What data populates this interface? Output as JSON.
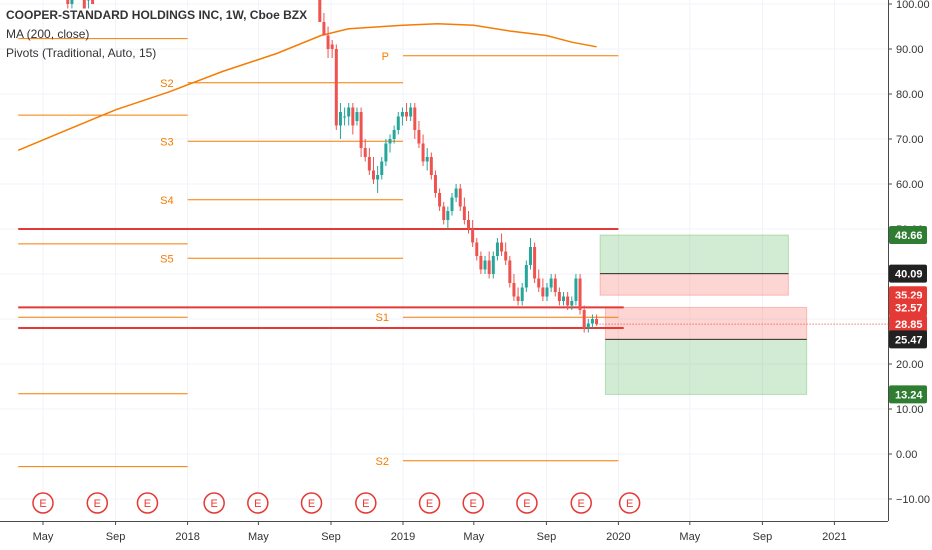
{
  "chart_data": {
    "type": "candlestick",
    "title": "COOPER-STANDARD HOLDINGS INC, 1W, Cboe BZX",
    "indicators": [
      "MA (200, close)",
      "Pivots (Traditional, Auto, 15)"
    ],
    "y_axis": {
      "position": "right",
      "ylim": [
        -13,
        102
      ],
      "ticks": [
        100,
        90,
        80,
        70,
        60,
        50,
        40,
        30,
        20,
        10,
        0,
        -10
      ],
      "tick_labels": [
        "100.00",
        "90.00",
        "80.00",
        "70.00",
        "60.00",
        "50.00",
        "40.00",
        "30.00",
        "20.00",
        "10.00",
        "0.00",
        "−10.00"
      ]
    },
    "x_axis": {
      "range": [
        "2017-03-20",
        "2021-04-15"
      ],
      "ticks": [
        {
          "date": "2017-05-01",
          "label": "May"
        },
        {
          "date": "2017-09-01",
          "label": "Sep"
        },
        {
          "date": "2018-01-01",
          "label": "2018"
        },
        {
          "date": "2018-05-01",
          "label": "May"
        },
        {
          "date": "2018-09-01",
          "label": "Sep"
        },
        {
          "date": "2019-01-01",
          "label": "2019"
        },
        {
          "date": "2019-05-01",
          "label": "May"
        },
        {
          "date": "2019-09-01",
          "label": "Sep"
        },
        {
          "date": "2020-01-01",
          "label": "2020"
        },
        {
          "date": "2020-05-01",
          "label": "May"
        },
        {
          "date": "2020-09-01",
          "label": "Sep"
        },
        {
          "date": "2021-01-01",
          "label": "2021"
        }
      ]
    },
    "candles": [
      {
        "date": "2017-06-05",
        "open": 104,
        "high": 104,
        "low": 101,
        "close": 102
      },
      {
        "date": "2017-06-12",
        "open": 102,
        "high": 103,
        "low": 99,
        "close": 100
      },
      {
        "date": "2017-06-19",
        "open": 100,
        "high": 103,
        "low": 99,
        "close": 102
      },
      {
        "date": "2017-07-10",
        "open": 102,
        "high": 103,
        "low": 99,
        "close": 99
      },
      {
        "date": "2017-07-17",
        "open": 101,
        "high": 103,
        "low": 99,
        "close": 101
      },
      {
        "date": "2017-07-24",
        "open": 102,
        "high": 103,
        "low": 100,
        "close": 100
      },
      {
        "date": "2018-08-13",
        "open": 103,
        "high": 104,
        "low": 96,
        "close": 96
      },
      {
        "date": "2018-08-20",
        "open": 96,
        "high": 98,
        "low": 93,
        "close": 93
      },
      {
        "date": "2018-08-27",
        "open": 93,
        "high": 95,
        "low": 88,
        "close": 90
      },
      {
        "date": "2018-09-03",
        "open": 91,
        "high": 92,
        "low": 88,
        "close": 90
      },
      {
        "date": "2018-09-10",
        "open": 90,
        "high": 91,
        "low": 72,
        "close": 73
      },
      {
        "date": "2018-09-17",
        "open": 73,
        "high": 78,
        "low": 70,
        "close": 76
      },
      {
        "date": "2018-09-24",
        "open": 75,
        "high": 77,
        "low": 73,
        "close": 75
      },
      {
        "date": "2018-10-01",
        "open": 75,
        "high": 78,
        "low": 73,
        "close": 77
      },
      {
        "date": "2018-10-08",
        "open": 77,
        "high": 78,
        "low": 71,
        "close": 73
      },
      {
        "date": "2018-10-15",
        "open": 74,
        "high": 77,
        "low": 73,
        "close": 76
      },
      {
        "date": "2018-10-22",
        "open": 76,
        "high": 77,
        "low": 66,
        "close": 68
      },
      {
        "date": "2018-10-29",
        "open": 68,
        "high": 70,
        "low": 65,
        "close": 66
      },
      {
        "date": "2018-11-05",
        "open": 66,
        "high": 68,
        "low": 62,
        "close": 63
      },
      {
        "date": "2018-11-12",
        "open": 63,
        "high": 66,
        "low": 60,
        "close": 61
      },
      {
        "date": "2018-11-19",
        "open": 61,
        "high": 64,
        "low": 58,
        "close": 62
      },
      {
        "date": "2018-11-26",
        "open": 62,
        "high": 66,
        "low": 61,
        "close": 65
      },
      {
        "date": "2018-12-03",
        "open": 65,
        "high": 70,
        "low": 64,
        "close": 69
      },
      {
        "date": "2018-12-10",
        "open": 69,
        "high": 71,
        "low": 67,
        "close": 70
      },
      {
        "date": "2018-12-17",
        "open": 70,
        "high": 73,
        "low": 69,
        "close": 72
      },
      {
        "date": "2018-12-24",
        "open": 72,
        "high": 76,
        "low": 71,
        "close": 75
      },
      {
        "date": "2018-12-31",
        "open": 75,
        "high": 77,
        "low": 73,
        "close": 76
      },
      {
        "date": "2019-01-07",
        "open": 76,
        "high": 78,
        "low": 74,
        "close": 75
      },
      {
        "date": "2019-01-14",
        "open": 75,
        "high": 78,
        "low": 74,
        "close": 77
      },
      {
        "date": "2019-01-21",
        "open": 77,
        "high": 78,
        "low": 70,
        "close": 72
      },
      {
        "date": "2019-01-28",
        "open": 72,
        "high": 74,
        "low": 68,
        "close": 69
      },
      {
        "date": "2019-02-04",
        "open": 69,
        "high": 71,
        "low": 64,
        "close": 65
      },
      {
        "date": "2019-02-11",
        "open": 65,
        "high": 68,
        "low": 63,
        "close": 66
      },
      {
        "date": "2019-02-18",
        "open": 66,
        "high": 67,
        "low": 61,
        "close": 62
      },
      {
        "date": "2019-02-25",
        "open": 62,
        "high": 63,
        "low": 57,
        "close": 58
      },
      {
        "date": "2019-03-04",
        "open": 58,
        "high": 59,
        "low": 54,
        "close": 55
      },
      {
        "date": "2019-03-11",
        "open": 55,
        "high": 56,
        "low": 51,
        "close": 52
      },
      {
        "date": "2019-03-18",
        "open": 52,
        "high": 55,
        "low": 50,
        "close": 54
      },
      {
        "date": "2019-03-25",
        "open": 54,
        "high": 58,
        "low": 53,
        "close": 57
      },
      {
        "date": "2019-04-01",
        "open": 57,
        "high": 60,
        "low": 56,
        "close": 59
      },
      {
        "date": "2019-04-08",
        "open": 59,
        "high": 60,
        "low": 54,
        "close": 55
      },
      {
        "date": "2019-04-15",
        "open": 55,
        "high": 57,
        "low": 51,
        "close": 52
      },
      {
        "date": "2019-04-22",
        "open": 52,
        "high": 54,
        "low": 49,
        "close": 50
      },
      {
        "date": "2019-04-29",
        "open": 50,
        "high": 52,
        "low": 46,
        "close": 47
      },
      {
        "date": "2019-05-06",
        "open": 47,
        "high": 48,
        "low": 43,
        "close": 44
      },
      {
        "date": "2019-05-13",
        "open": 44,
        "high": 45,
        "low": 40,
        "close": 41
      },
      {
        "date": "2019-05-20",
        "open": 41,
        "high": 44,
        "low": 40,
        "close": 43
      },
      {
        "date": "2019-05-27",
        "open": 43,
        "high": 45,
        "low": 39,
        "close": 40
      },
      {
        "date": "2019-06-03",
        "open": 40,
        "high": 45,
        "low": 39,
        "close": 44
      },
      {
        "date": "2019-06-10",
        "open": 44,
        "high": 48,
        "low": 43,
        "close": 47
      },
      {
        "date": "2019-06-17",
        "open": 47,
        "high": 49,
        "low": 44,
        "close": 45
      },
      {
        "date": "2019-06-24",
        "open": 45,
        "high": 47,
        "low": 42,
        "close": 43
      },
      {
        "date": "2019-07-01",
        "open": 43,
        "high": 44,
        "low": 37,
        "close": 38
      },
      {
        "date": "2019-07-08",
        "open": 38,
        "high": 40,
        "low": 34,
        "close": 35
      },
      {
        "date": "2019-07-15",
        "open": 35,
        "high": 37,
        "low": 33,
        "close": 34
      },
      {
        "date": "2019-07-22",
        "open": 34,
        "high": 38,
        "low": 33,
        "close": 37
      },
      {
        "date": "2019-07-29",
        "open": 37,
        "high": 43,
        "low": 36,
        "close": 42
      },
      {
        "date": "2019-08-05",
        "open": 42,
        "high": 48,
        "low": 41,
        "close": 46
      },
      {
        "date": "2019-08-12",
        "open": 46,
        "high": 47,
        "low": 38,
        "close": 39
      },
      {
        "date": "2019-08-19",
        "open": 39,
        "high": 41,
        "low": 36,
        "close": 37
      },
      {
        "date": "2019-08-26",
        "open": 37,
        "high": 39,
        "low": 34,
        "close": 35
      },
      {
        "date": "2019-09-02",
        "open": 35,
        "high": 38,
        "low": 34,
        "close": 37
      },
      {
        "date": "2019-09-09",
        "open": 37,
        "high": 40,
        "low": 36,
        "close": 39
      },
      {
        "date": "2019-09-16",
        "open": 39,
        "high": 40,
        "low": 35,
        "close": 36
      },
      {
        "date": "2019-09-23",
        "open": 36,
        "high": 37,
        "low": 33,
        "close": 34
      },
      {
        "date": "2019-09-30",
        "open": 34,
        "high": 36,
        "low": 33,
        "close": 35
      },
      {
        "date": "2019-10-07",
        "open": 35,
        "high": 36,
        "low": 32,
        "close": 33
      },
      {
        "date": "2019-10-14",
        "open": 33,
        "high": 35,
        "low": 32,
        "close": 34
      },
      {
        "date": "2019-10-21",
        "open": 34,
        "high": 40,
        "low": 33,
        "close": 39
      },
      {
        "date": "2019-10-28",
        "open": 39,
        "high": 40,
        "low": 31,
        "close": 32
      },
      {
        "date": "2019-11-04",
        "open": 32,
        "high": 33,
        "low": 27,
        "close": 28
      },
      {
        "date": "2019-11-11",
        "open": 28,
        "high": 30,
        "low": 27,
        "close": 29
      },
      {
        "date": "2019-11-18",
        "open": 29,
        "high": 31,
        "low": 28,
        "close": 30
      },
      {
        "date": "2019-11-25",
        "open": 30,
        "high": 31,
        "low": 28.5,
        "close": 28.85
      }
    ],
    "moving_average": {
      "name": "MA (200, close)",
      "color": "#f57c00",
      "points": [
        {
          "date": "2017-03-20",
          "value": 67.5
        },
        {
          "date": "2017-06-01",
          "value": 71.5
        },
        {
          "date": "2017-09-01",
          "value": 76.5
        },
        {
          "date": "2017-12-01",
          "value": 80.5
        },
        {
          "date": "2018-03-01",
          "value": 85
        },
        {
          "date": "2018-06-01",
          "value": 89
        },
        {
          "date": "2018-08-15",
          "value": 93
        },
        {
          "date": "2018-10-01",
          "value": 94.5
        },
        {
          "date": "2019-01-01",
          "value": 95.3
        },
        {
          "date": "2019-03-01",
          "value": 95.6
        },
        {
          "date": "2019-05-01",
          "value": 95.3
        },
        {
          "date": "2019-07-01",
          "value": 94
        },
        {
          "date": "2019-09-01",
          "value": 93
        },
        {
          "date": "2019-10-15",
          "value": 91.5
        },
        {
          "date": "2019-11-25",
          "value": 90.5
        }
      ]
    },
    "pivots": {
      "color": "#f57c00",
      "segments": [
        {
          "label": "",
          "y": 92.3,
          "x0": "2017-03-20",
          "x1": "2018-01-01"
        },
        {
          "label": "",
          "y": 75.3,
          "x0": "2017-03-20",
          "x1": "2018-01-01"
        },
        {
          "label": "",
          "y": 46.7,
          "x0": "2017-03-20",
          "x1": "2018-01-01"
        },
        {
          "label": "",
          "y": 30.4,
          "x0": "2017-03-20",
          "x1": "2018-01-01"
        },
        {
          "label": "",
          "y": 13.4,
          "x0": "2017-03-20",
          "x1": "2018-01-01"
        },
        {
          "label": "",
          "y": -2.8,
          "x0": "2017-03-20",
          "x1": "2018-01-01"
        },
        {
          "label": "S2",
          "y": 82.5,
          "x0": "2018-01-01",
          "x1": "2019-01-01"
        },
        {
          "label": "S3",
          "y": 69.5,
          "x0": "2018-01-01",
          "x1": "2019-01-01"
        },
        {
          "label": "S4",
          "y": 56.5,
          "x0": "2018-01-01",
          "x1": "2019-01-01"
        },
        {
          "label": "S5",
          "y": 43.5,
          "x0": "2018-01-01",
          "x1": "2019-01-01"
        },
        {
          "label": "P",
          "y": 88.5,
          "x0": "2019-01-01",
          "x1": "2020-01-01"
        },
        {
          "label": "S1",
          "y": 30.4,
          "x0": "2019-01-01",
          "x1": "2020-01-01"
        },
        {
          "label": "S2",
          "y": -1.5,
          "x0": "2019-01-01",
          "x1": "2020-01-01"
        }
      ]
    },
    "support_resistance_lines": [
      {
        "y": 50.0,
        "x0": "2017-03-20",
        "x1": "2020-01-01",
        "color": "#e53935"
      },
      {
        "y": 32.57,
        "x0": "2017-03-20",
        "x1": "2020-01-10",
        "color": "#e53935"
      },
      {
        "y": 28.0,
        "x0": "2017-03-20",
        "x1": "2020-01-10",
        "color": "#e53935"
      }
    ],
    "current_price": {
      "value": 28.85,
      "color": "#e53935"
    },
    "positions": [
      {
        "type": "long",
        "x0": "2019-12-01",
        "x1": "2020-10-15",
        "entry": 40.09,
        "target": 48.66,
        "stop": 35.29
      },
      {
        "type": "short",
        "x0": "2019-12-10",
        "x1": "2020-11-15",
        "entry": 25.47,
        "target": 13.24,
        "stop": 32.57
      }
    ],
    "price_labels": [
      {
        "value": 48.66,
        "text": "48.66",
        "bg": "#2e7d32"
      },
      {
        "value": 40.09,
        "text": "40.09",
        "bg": "#212121"
      },
      {
        "value": 35.29,
        "text": "35.29",
        "bg": "#e53935"
      },
      {
        "value": 32.57,
        "text": "32.57",
        "bg": "#e53935"
      },
      {
        "value": 28.85,
        "text": "28.85",
        "bg": "#e53935"
      },
      {
        "value": 25.47,
        "text": "25.47",
        "bg": "#212121"
      },
      {
        "value": 13.24,
        "text": "13.24",
        "bg": "#2e7d32"
      }
    ],
    "earnings": {
      "label": "E",
      "color": "#e53935",
      "dates": [
        "2017-05-01",
        "2017-08-01",
        "2017-10-25",
        "2018-02-15",
        "2018-04-30",
        "2018-07-30",
        "2018-10-30",
        "2019-02-15",
        "2019-04-30",
        "2019-07-30",
        "2019-10-30",
        "2020-01-20"
      ]
    },
    "colors": {
      "up": "#26a69a",
      "down": "#ef5350",
      "grid": "#f0f3fa"
    }
  }
}
